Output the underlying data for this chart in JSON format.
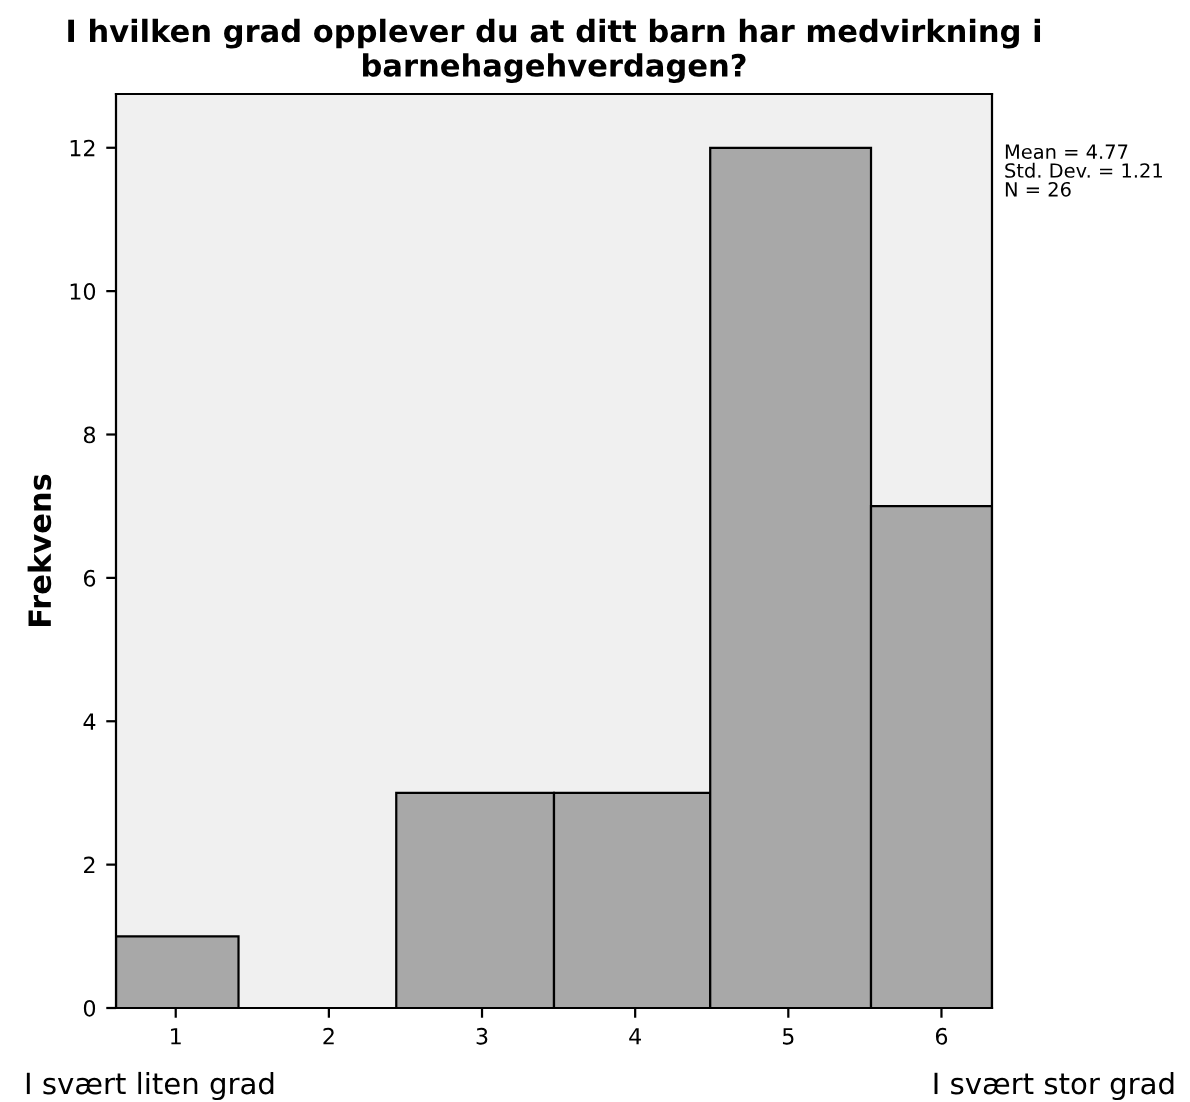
{
  "chart_data": {
    "type": "histogram",
    "title": "I hvilken grad opplever du at ditt barn har medvirkning i barnehagehverdagen?",
    "ylabel": "Frekvens",
    "bins": [
      0.61,
      1.41,
      2.44,
      3.47,
      4.49,
      5.54,
      6.33
    ],
    "values": [
      1,
      0,
      3,
      3,
      12,
      7
    ],
    "color": "#a8a8a8",
    "xlim": [
      0.61,
      6.33
    ],
    "xticks": [
      1,
      2,
      3,
      4,
      5,
      6
    ],
    "ylim": [
      0,
      12.75
    ],
    "yticks": [
      0,
      2,
      4,
      6,
      8,
      10,
      12
    ],
    "grid": false,
    "annotations": [
      "Mean = 4.77\nStd. Dev. = 1.21\nN = 26",
      "I svært liten grad",
      "I svært stor grad"
    ]
  }
}
